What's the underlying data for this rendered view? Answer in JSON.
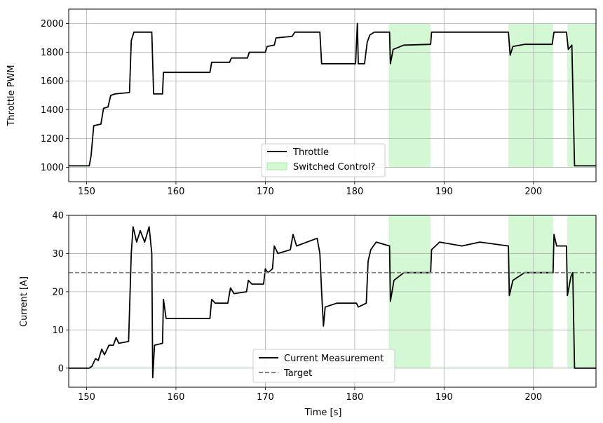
{
  "colors": {
    "throttle": "#000000",
    "current": "#000000",
    "target": "#808080",
    "switched_fill": "#d4f7d4",
    "switched_edge": "#a8eea8",
    "grid": "#b0b0b0"
  },
  "chart_data": [
    {
      "type": "line",
      "ylabel": "Throttle PWM",
      "xlabel": "",
      "xlim": [
        148,
        207
      ],
      "ylim": [
        900,
        2100
      ],
      "xticks": [
        "150",
        "160",
        "170",
        "180",
        "190",
        "200"
      ],
      "yticks": [
        "1000",
        "1200",
        "1400",
        "1600",
        "1800",
        "2000"
      ],
      "grid": true,
      "legend_position": "lower-center",
      "legend": [
        "Throttle",
        "Switched Control?"
      ],
      "switched_regions": [
        [
          183.8,
          188.5
        ],
        [
          197.2,
          202.2
        ],
        [
          203.8,
          207
        ]
      ],
      "series": [
        {
          "name": "Throttle",
          "points": [
            [
              148,
              1010
            ],
            [
              150.3,
              1010
            ],
            [
              150.5,
              1080
            ],
            [
              150.8,
              1290
            ],
            [
              151.6,
              1300
            ],
            [
              151.9,
              1410
            ],
            [
              152.4,
              1420
            ],
            [
              152.7,
              1500
            ],
            [
              153.2,
              1510
            ],
            [
              154.8,
              1520
            ],
            [
              155.0,
              1880
            ],
            [
              155.3,
              1940
            ],
            [
              157.3,
              1940
            ],
            [
              157.5,
              1510
            ],
            [
              158.5,
              1510
            ],
            [
              158.6,
              1660
            ],
            [
              163.8,
              1660
            ],
            [
              164.0,
              1730
            ],
            [
              166.0,
              1730
            ],
            [
              166.2,
              1760
            ],
            [
              168.0,
              1760
            ],
            [
              168.2,
              1800
            ],
            [
              170.0,
              1800
            ],
            [
              170.2,
              1840
            ],
            [
              171.0,
              1850
            ],
            [
              171.2,
              1900
            ],
            [
              173.0,
              1910
            ],
            [
              173.3,
              1940
            ],
            [
              176.1,
              1940
            ],
            [
              176.3,
              1720
            ],
            [
              180.1,
              1720
            ],
            [
              180.3,
              2000
            ],
            [
              180.4,
              1720
            ],
            [
              181.1,
              1720
            ],
            [
              181.4,
              1870
            ],
            [
              181.7,
              1920
            ],
            [
              182.2,
              1940
            ],
            [
              183.9,
              1940
            ],
            [
              184.0,
              1720
            ],
            [
              184.3,
              1820
            ],
            [
              185.5,
              1850
            ],
            [
              188.5,
              1855
            ],
            [
              188.6,
              1940
            ],
            [
              197.2,
              1940
            ],
            [
              197.4,
              1780
            ],
            [
              197.7,
              1840
            ],
            [
              199.0,
              1855
            ],
            [
              202.1,
              1855
            ],
            [
              202.3,
              1940
            ],
            [
              203.7,
              1940
            ],
            [
              203.9,
              1820
            ],
            [
              204.3,
              1850
            ],
            [
              204.6,
              1010
            ],
            [
              207,
              1010
            ]
          ]
        }
      ]
    },
    {
      "type": "line",
      "ylabel": "Current [A]",
      "xlabel": "Time [s]",
      "xlim": [
        148,
        207
      ],
      "ylim": [
        -5,
        40
      ],
      "xticks": [
        "150",
        "160",
        "170",
        "180",
        "190",
        "200"
      ],
      "yticks": [
        "0",
        "10",
        "20",
        "30",
        "40"
      ],
      "grid": true,
      "legend_position": "lower-center",
      "legend": [
        "Current Measurement",
        "Target"
      ],
      "target": 25,
      "switched_regions": [
        [
          183.8,
          188.5
        ],
        [
          197.2,
          202.2
        ],
        [
          203.8,
          207
        ]
      ],
      "series": [
        {
          "name": "Current Measurement",
          "points": [
            [
              148,
              0
            ],
            [
              150.3,
              0
            ],
            [
              150.6,
              0.5
            ],
            [
              151.0,
              2.5
            ],
            [
              151.3,
              2
            ],
            [
              151.7,
              5
            ],
            [
              152.0,
              3.5
            ],
            [
              152.5,
              6
            ],
            [
              153.0,
              6
            ],
            [
              153.3,
              8
            ],
            [
              153.6,
              6.5
            ],
            [
              154.7,
              7
            ],
            [
              155.0,
              30
            ],
            [
              155.2,
              37
            ],
            [
              155.6,
              33
            ],
            [
              156.0,
              36
            ],
            [
              156.5,
              33
            ],
            [
              157.0,
              37
            ],
            [
              157.3,
              30
            ],
            [
              157.4,
              -2.5
            ],
            [
              157.6,
              6
            ],
            [
              158.5,
              6.5
            ],
            [
              158.6,
              18
            ],
            [
              158.9,
              13
            ],
            [
              163.8,
              13
            ],
            [
              164.0,
              18
            ],
            [
              164.4,
              17
            ],
            [
              165.8,
              17
            ],
            [
              166.1,
              21
            ],
            [
              166.5,
              19.5
            ],
            [
              167.9,
              20
            ],
            [
              168.1,
              23
            ],
            [
              168.5,
              22
            ],
            [
              169.8,
              22
            ],
            [
              170.0,
              26
            ],
            [
              170.3,
              25
            ],
            [
              170.8,
              26
            ],
            [
              171.0,
              32
            ],
            [
              171.4,
              30
            ],
            [
              172.8,
              31
            ],
            [
              173.1,
              35
            ],
            [
              173.5,
              32
            ],
            [
              175.8,
              34
            ],
            [
              176.1,
              30
            ],
            [
              176.3,
              20
            ],
            [
              176.5,
              11
            ],
            [
              176.7,
              16
            ],
            [
              178,
              17
            ],
            [
              180.2,
              17
            ],
            [
              180.4,
              16
            ],
            [
              181.3,
              17
            ],
            [
              181.5,
              28
            ],
            [
              181.8,
              31
            ],
            [
              182.4,
              33
            ],
            [
              183.9,
              32
            ],
            [
              184.0,
              17.5
            ],
            [
              184.4,
              23
            ],
            [
              185.5,
              25
            ],
            [
              188.5,
              25
            ],
            [
              188.6,
              31
            ],
            [
              189.5,
              33
            ],
            [
              192,
              32
            ],
            [
              194,
              33
            ],
            [
              197.2,
              32
            ],
            [
              197.3,
              19
            ],
            [
              197.7,
              23
            ],
            [
              199,
              25
            ],
            [
              202.2,
              25
            ],
            [
              202.3,
              35
            ],
            [
              202.6,
              32
            ],
            [
              203.7,
              32
            ],
            [
              203.8,
              19
            ],
            [
              204.2,
              24
            ],
            [
              204.4,
              25
            ],
            [
              204.6,
              0
            ],
            [
              207,
              0
            ]
          ]
        },
        {
          "name": "Target",
          "points": [
            [
              148,
              25
            ],
            [
              207,
              25
            ]
          ]
        }
      ]
    }
  ]
}
